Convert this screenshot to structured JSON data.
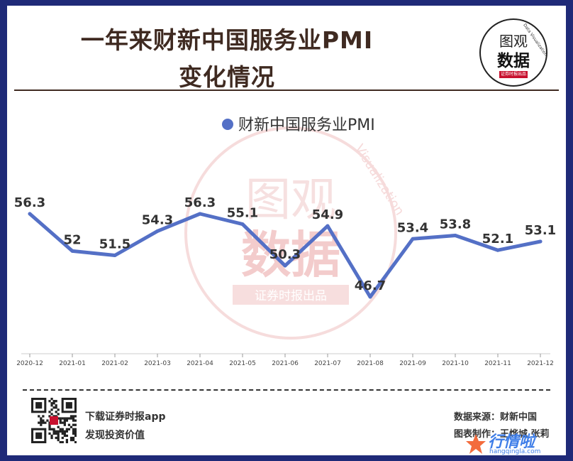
{
  "header": {
    "title_line_1": "一年来财新中国服务业PMI",
    "title_line_2": "变化情况"
  },
  "logo": {
    "line_1": "图观",
    "line_2": "数据",
    "tag": "证券时报出品",
    "arc_text": "Data Visualization"
  },
  "watermark": {
    "line_1": "图观",
    "line_2": "数据",
    "tag": "证券时报出品",
    "arc_text": "Visualization"
  },
  "chart_data": {
    "type": "line",
    "legend": {
      "label": "财新中国服务业PMI",
      "position": "top-center"
    },
    "categories": [
      "2020-12",
      "2021-01",
      "2021-02",
      "2021-03",
      "2021-04",
      "2021-05",
      "2021-06",
      "2021-07",
      "2021-08",
      "2021-09",
      "2021-10",
      "2021-11",
      "2021-12"
    ],
    "series": [
      {
        "name": "财新中国服务业PMI",
        "values": [
          56.3,
          52,
          51.5,
          54.3,
          56.3,
          55.1,
          50.3,
          54.9,
          46.7,
          53.4,
          53.8,
          52.1,
          53.1
        ],
        "color": "#5470c6"
      }
    ],
    "data_labels": [
      "56.3",
      "52",
      "51.5",
      "54.3",
      "56.3",
      "55.1",
      "50.3",
      "54.9",
      "46.7",
      "53.4",
      "53.8",
      "52.1",
      "53.1"
    ],
    "grid": false,
    "y_axis_visible": false
  },
  "footer": {
    "app_line_1": "下载证券时报app",
    "app_line_2": "发现投资价值",
    "source": "数据来源：财新中国",
    "credit": "图表制作：王烨城 张莉",
    "site_name": "行情啦",
    "site_url": "hangqingla.com"
  },
  "colors": {
    "frame": "#1f2a78",
    "title": "#3f2a21",
    "series": "#5470c6",
    "watermark": "#f2c9c9",
    "site": "#3f7ee8"
  }
}
